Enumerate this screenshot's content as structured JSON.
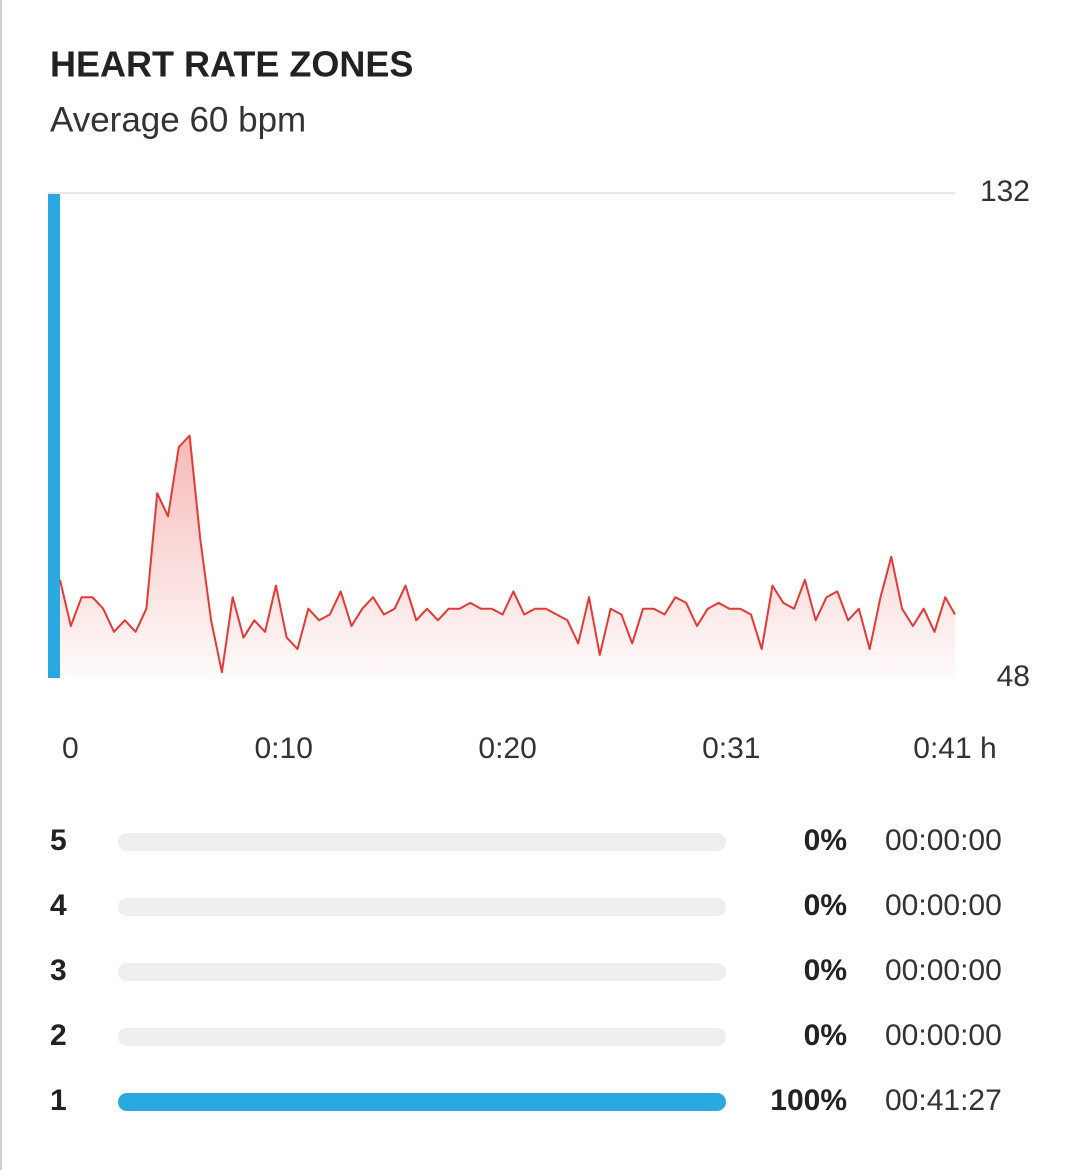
{
  "header": {
    "title": "HEART RATE ZONES",
    "subtitle": "Average 60 bpm"
  },
  "chart_data": {
    "type": "line",
    "color": "#e53935",
    "x": [
      0,
      0.5,
      1,
      1.5,
      2,
      2.5,
      3,
      3.5,
      4,
      4.5,
      5,
      5.5,
      6,
      6.5,
      7,
      7.5,
      8,
      8.5,
      9,
      9.5,
      10,
      10.5,
      11,
      11.5,
      12,
      12.5,
      13,
      13.5,
      14,
      14.5,
      15,
      15.5,
      16,
      16.5,
      17,
      17.5,
      18,
      18.5,
      19,
      19.5,
      20,
      20.5,
      21,
      21.5,
      22,
      22.5,
      23,
      23.5,
      24,
      24.5,
      25,
      25.5,
      26,
      26.5,
      27,
      27.5,
      28,
      28.5,
      29,
      29.5,
      30,
      30.5,
      31,
      31.5,
      32,
      32.5,
      33,
      33.5,
      34,
      34.5,
      35,
      35.5,
      36,
      36.5,
      37,
      37.5,
      38,
      38.5,
      39,
      39.5,
      40,
      40.5,
      41,
      41.45
    ],
    "values": [
      65,
      57,
      62,
      62,
      60,
      56,
      58,
      56,
      60,
      80,
      76,
      88,
      90,
      72,
      58,
      49,
      62,
      55,
      58,
      56,
      64,
      55,
      53,
      60,
      58,
      59,
      63,
      57,
      60,
      62,
      59,
      60,
      64,
      58,
      60,
      58,
      60,
      60,
      61,
      60,
      60,
      59,
      63,
      59,
      60,
      60,
      59,
      58,
      54,
      62,
      52,
      60,
      59,
      54,
      60,
      60,
      59,
      62,
      61,
      57,
      60,
      61,
      60,
      60,
      59,
      53,
      64,
      61,
      60,
      65,
      58,
      62,
      63,
      58,
      60,
      53,
      62,
      69,
      60,
      57,
      60,
      56,
      62,
      59
    ],
    "xlim": [
      0,
      41.45
    ],
    "ylim": [
      48,
      132
    ],
    "xticks": [
      0,
      {
        "value": 10.36,
        "label": "0:10"
      },
      {
        "value": 20.73,
        "label": "0:20"
      },
      {
        "value": 31.09,
        "label": "0:31"
      },
      {
        "value": 41.45,
        "label": "0:41 h"
      }
    ],
    "yticks": [
      48,
      132
    ],
    "zone_color": "#2aa9e0"
  },
  "zones": [
    {
      "zone": "5",
      "color": "#e8383d",
      "percent": 0,
      "percent_label": "0%",
      "duration": "00:00:00"
    },
    {
      "zone": "4",
      "color": "#f5a623",
      "percent": 0,
      "percent_label": "0%",
      "duration": "00:00:00"
    },
    {
      "zone": "3",
      "color": "#f7d84a",
      "percent": 0,
      "percent_label": "0%",
      "duration": "00:00:00"
    },
    {
      "zone": "2",
      "color": "#35c25a",
      "percent": 0,
      "percent_label": "0%",
      "duration": "00:00:00"
    },
    {
      "zone": "1",
      "color": "#2aa9e0",
      "percent": 100,
      "percent_label": "100%",
      "duration": "00:41:27"
    }
  ]
}
